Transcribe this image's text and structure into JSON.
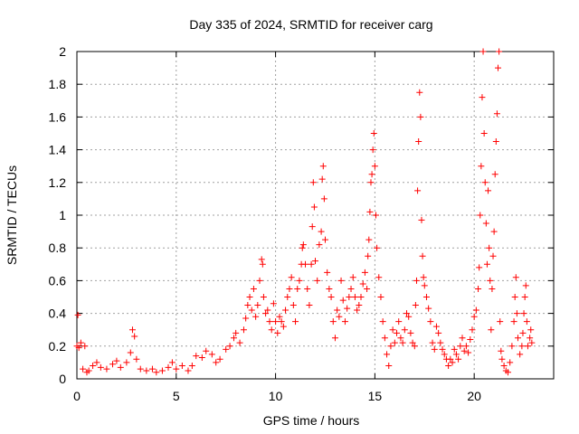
{
  "chart_data": {
    "type": "scatter",
    "title": "Day 335 of 2024, SRMTID for receiver carg",
    "xlabel": "GPS time / hours",
    "ylabel": "SRMTID / TECUs",
    "xlim": [
      0,
      24
    ],
    "ylim": [
      0,
      2
    ],
    "xticks": [
      0,
      5,
      10,
      15,
      20
    ],
    "xtick_labels": [
      "0",
      "5",
      "10",
      "15",
      "20"
    ],
    "yticks": [
      0,
      0.2,
      0.4,
      0.6,
      0.8,
      1,
      1.2,
      1.4,
      1.6,
      1.8,
      2
    ],
    "ytick_labels": [
      "0",
      "0.2",
      "0.4",
      "0.6",
      "0.8",
      "1",
      "1.2",
      "1.4",
      "1.6",
      "1.8",
      "2"
    ],
    "grid": true,
    "marker": "plus",
    "series": [
      {
        "name": "SRMTID",
        "color": "#ff0000",
        "points": [
          [
            0.0,
            0.2
          ],
          [
            0.05,
            0.39
          ],
          [
            0.1,
            0.19
          ],
          [
            0.2,
            0.22
          ],
          [
            0.3,
            0.06
          ],
          [
            0.4,
            0.2
          ],
          [
            0.5,
            0.04
          ],
          [
            0.6,
            0.05
          ],
          [
            0.8,
            0.08
          ],
          [
            1.0,
            0.1
          ],
          [
            1.2,
            0.07
          ],
          [
            1.5,
            0.06
          ],
          [
            1.8,
            0.09
          ],
          [
            2.0,
            0.11
          ],
          [
            2.2,
            0.07
          ],
          [
            2.5,
            0.1
          ],
          [
            2.7,
            0.16
          ],
          [
            2.8,
            0.3
          ],
          [
            2.9,
            0.26
          ],
          [
            3.0,
            0.12
          ],
          [
            3.2,
            0.06
          ],
          [
            3.5,
            0.05
          ],
          [
            3.8,
            0.06
          ],
          [
            4.0,
            0.04
          ],
          [
            4.3,
            0.05
          ],
          [
            4.6,
            0.07
          ],
          [
            4.8,
            0.1
          ],
          [
            5.0,
            0.06
          ],
          [
            5.3,
            0.08
          ],
          [
            5.6,
            0.05
          ],
          [
            5.8,
            0.08
          ],
          [
            6.0,
            0.14
          ],
          [
            6.3,
            0.13
          ],
          [
            6.5,
            0.17
          ],
          [
            6.8,
            0.15
          ],
          [
            7.0,
            0.1
          ],
          [
            7.2,
            0.12
          ],
          [
            7.5,
            0.18
          ],
          [
            7.7,
            0.2
          ],
          [
            7.9,
            0.25
          ],
          [
            8.0,
            0.28
          ],
          [
            8.2,
            0.22
          ],
          [
            8.4,
            0.3
          ],
          [
            8.5,
            0.37
          ],
          [
            8.6,
            0.45
          ],
          [
            8.7,
            0.5
          ],
          [
            8.8,
            0.42
          ],
          [
            8.9,
            0.55
          ],
          [
            9.0,
            0.38
          ],
          [
            9.1,
            0.45
          ],
          [
            9.2,
            0.6
          ],
          [
            9.3,
            0.73
          ],
          [
            9.35,
            0.7
          ],
          [
            9.4,
            0.5
          ],
          [
            9.5,
            0.4
          ],
          [
            9.6,
            0.42
          ],
          [
            9.7,
            0.35
          ],
          [
            9.8,
            0.3
          ],
          [
            9.9,
            0.46
          ],
          [
            10.0,
            0.35
          ],
          [
            10.1,
            0.28
          ],
          [
            10.2,
            0.38
          ],
          [
            10.3,
            0.35
          ],
          [
            10.4,
            0.32
          ],
          [
            10.5,
            0.42
          ],
          [
            10.6,
            0.5
          ],
          [
            10.7,
            0.55
          ],
          [
            10.8,
            0.62
          ],
          [
            10.9,
            0.45
          ],
          [
            11.0,
            0.35
          ],
          [
            11.1,
            0.55
          ],
          [
            11.2,
            0.6
          ],
          [
            11.3,
            0.7
          ],
          [
            11.35,
            0.8
          ],
          [
            11.4,
            0.82
          ],
          [
            11.5,
            0.7
          ],
          [
            11.6,
            0.55
          ],
          [
            11.7,
            0.45
          ],
          [
            11.8,
            0.7
          ],
          [
            11.85,
            0.93
          ],
          [
            11.9,
            1.2
          ],
          [
            11.95,
            1.05
          ],
          [
            12.0,
            0.72
          ],
          [
            12.1,
            0.6
          ],
          [
            12.2,
            0.82
          ],
          [
            12.3,
            0.9
          ],
          [
            12.35,
            1.22
          ],
          [
            12.4,
            1.3
          ],
          [
            12.45,
            1.1
          ],
          [
            12.5,
            0.85
          ],
          [
            12.6,
            0.65
          ],
          [
            12.7,
            0.55
          ],
          [
            12.8,
            0.5
          ],
          [
            12.9,
            0.35
          ],
          [
            13.0,
            0.25
          ],
          [
            13.1,
            0.42
          ],
          [
            13.2,
            0.38
          ],
          [
            13.3,
            0.6
          ],
          [
            13.4,
            0.48
          ],
          [
            13.5,
            0.35
          ],
          [
            13.6,
            0.43
          ],
          [
            13.7,
            0.5
          ],
          [
            13.8,
            0.55
          ],
          [
            13.9,
            0.62
          ],
          [
            14.0,
            0.5
          ],
          [
            14.1,
            0.42
          ],
          [
            14.2,
            0.45
          ],
          [
            14.3,
            0.5
          ],
          [
            14.4,
            0.58
          ],
          [
            14.5,
            0.65
          ],
          [
            14.6,
            0.55
          ],
          [
            14.65,
            0.75
          ],
          [
            14.7,
            0.85
          ],
          [
            14.75,
            1.02
          ],
          [
            14.8,
            1.2
          ],
          [
            14.85,
            1.25
          ],
          [
            14.9,
            1.4
          ],
          [
            14.95,
            1.5
          ],
          [
            15.0,
            1.3
          ],
          [
            15.05,
            1.0
          ],
          [
            15.1,
            0.8
          ],
          [
            15.2,
            0.62
          ],
          [
            15.3,
            0.5
          ],
          [
            15.4,
            0.35
          ],
          [
            15.5,
            0.25
          ],
          [
            15.6,
            0.15
          ],
          [
            15.7,
            0.08
          ],
          [
            15.8,
            0.2
          ],
          [
            15.9,
            0.3
          ],
          [
            16.0,
            0.22
          ],
          [
            16.1,
            0.28
          ],
          [
            16.2,
            0.35
          ],
          [
            16.3,
            0.25
          ],
          [
            16.4,
            0.22
          ],
          [
            16.5,
            0.3
          ],
          [
            16.6,
            0.4
          ],
          [
            16.7,
            0.38
          ],
          [
            16.8,
            0.28
          ],
          [
            16.9,
            0.22
          ],
          [
            17.0,
            0.2
          ],
          [
            17.05,
            0.45
          ],
          [
            17.1,
            0.6
          ],
          [
            17.15,
            1.15
          ],
          [
            17.2,
            1.45
          ],
          [
            17.25,
            1.75
          ],
          [
            17.3,
            1.6
          ],
          [
            17.35,
            0.97
          ],
          [
            17.4,
            0.75
          ],
          [
            17.45,
            0.62
          ],
          [
            17.5,
            0.57
          ],
          [
            17.6,
            0.5
          ],
          [
            17.7,
            0.43
          ],
          [
            17.8,
            0.35
          ],
          [
            17.9,
            0.22
          ],
          [
            18.0,
            0.18
          ],
          [
            18.1,
            0.32
          ],
          [
            18.2,
            0.28
          ],
          [
            18.3,
            0.22
          ],
          [
            18.4,
            0.18
          ],
          [
            18.5,
            0.15
          ],
          [
            18.6,
            0.12
          ],
          [
            18.7,
            0.08
          ],
          [
            18.8,
            0.12
          ],
          [
            18.9,
            0.1
          ],
          [
            19.0,
            0.18
          ],
          [
            19.1,
            0.15
          ],
          [
            19.2,
            0.12
          ],
          [
            19.3,
            0.2
          ],
          [
            19.4,
            0.25
          ],
          [
            19.5,
            0.17
          ],
          [
            19.6,
            0.2
          ],
          [
            19.7,
            0.16
          ],
          [
            19.8,
            0.24
          ],
          [
            19.9,
            0.3
          ],
          [
            20.0,
            0.38
          ],
          [
            20.1,
            0.42
          ],
          [
            20.2,
            0.55
          ],
          [
            20.25,
            0.68
          ],
          [
            20.3,
            1.0
          ],
          [
            20.35,
            1.3
          ],
          [
            20.4,
            1.72
          ],
          [
            20.45,
            2.0
          ],
          [
            20.5,
            1.5
          ],
          [
            20.55,
            1.2
          ],
          [
            20.6,
            0.95
          ],
          [
            20.65,
            0.7
          ],
          [
            20.7,
            1.15
          ],
          [
            20.75,
            0.8
          ],
          [
            20.8,
            0.6
          ],
          [
            20.85,
            0.3
          ],
          [
            20.9,
            0.55
          ],
          [
            20.95,
            0.75
          ],
          [
            21.0,
            0.9
          ],
          [
            21.05,
            1.25
          ],
          [
            21.1,
            1.45
          ],
          [
            21.15,
            1.62
          ],
          [
            21.2,
            1.9
          ],
          [
            21.25,
            2.0
          ],
          [
            21.3,
            0.35
          ],
          [
            21.35,
            0.17
          ],
          [
            21.4,
            0.12
          ],
          [
            21.5,
            0.08
          ],
          [
            21.6,
            0.05
          ],
          [
            21.7,
            0.04
          ],
          [
            21.8,
            0.1
          ],
          [
            21.9,
            0.2
          ],
          [
            22.0,
            0.35
          ],
          [
            22.05,
            0.5
          ],
          [
            22.1,
            0.62
          ],
          [
            22.15,
            0.4
          ],
          [
            22.2,
            0.25
          ],
          [
            22.3,
            0.15
          ],
          [
            22.4,
            0.2
          ],
          [
            22.45,
            0.28
          ],
          [
            22.5,
            0.4
          ],
          [
            22.55,
            0.5
          ],
          [
            22.6,
            0.57
          ],
          [
            22.65,
            0.35
          ],
          [
            22.7,
            0.2
          ],
          [
            22.8,
            0.25
          ],
          [
            22.85,
            0.3
          ],
          [
            22.9,
            0.22
          ]
        ]
      }
    ]
  }
}
